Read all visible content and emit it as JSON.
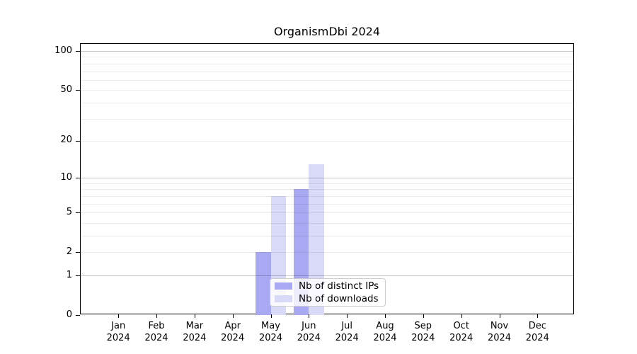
{
  "figure": {
    "background": "#ffffff"
  },
  "chart_data": {
    "type": "bar",
    "title": "OrganismDbi 2024",
    "categories": [
      "Jan",
      "Feb",
      "Mar",
      "Apr",
      "May",
      "Jun",
      "Jul",
      "Aug",
      "Sep",
      "Oct",
      "Nov",
      "Dec"
    ],
    "category_sublabel": "2024",
    "series": [
      {
        "name": "Nb of distinct IPs",
        "color": "#a9a9f3",
        "values": [
          0,
          0,
          0,
          0,
          2,
          8,
          0,
          0,
          0,
          0,
          0,
          0
        ]
      },
      {
        "name": "Nb of downloads",
        "color": "#d9d9f8",
        "values": [
          0,
          0,
          0,
          0,
          7,
          13,
          0,
          0,
          0,
          0,
          0,
          0
        ]
      }
    ],
    "xlabel": "",
    "ylabel": "",
    "yscale": "log1p",
    "ylim": [
      0,
      113
    ],
    "yticks": [
      0,
      1,
      2,
      5,
      10,
      20,
      50,
      100
    ],
    "grid": true,
    "gridlines": {
      "major": [
        1,
        10,
        100
      ],
      "minor": [
        2,
        3,
        4,
        5,
        6,
        7,
        8,
        9,
        20,
        30,
        40,
        50,
        60,
        70,
        80,
        90
      ]
    },
    "legend_position": "lower center",
    "colors": {
      "spine": "#000000",
      "major_grid": "#c9c9c9",
      "minor_grid": "#ebebeb",
      "legend_border": "#cccccc"
    }
  }
}
